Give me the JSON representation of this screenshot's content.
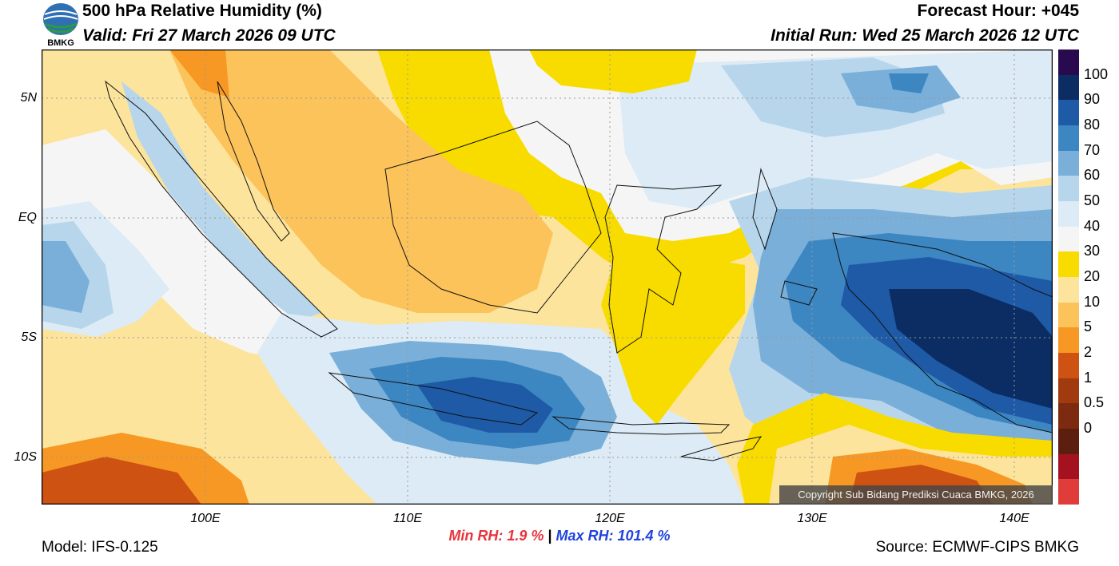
{
  "header": {
    "title": "500 hPa Relative Humidity (%)",
    "valid": "Valid: Fri 27 March 2026 09 UTC",
    "forecast_hour": "Forecast Hour: +045",
    "initial_run": "Initial Run: Wed 25 March 2026 12 UTC",
    "logo_text": "BMKG"
  },
  "map": {
    "lat_labels": [
      "5N",
      "EQ",
      "5S",
      "10S"
    ],
    "lon_labels": [
      "100E",
      "110E",
      "120E",
      "130E",
      "140E"
    ],
    "copyright": "Copyright Sub Bidang Prediksi Cuaca BMKG, 2026"
  },
  "colorbar": {
    "labels": [
      "100",
      "90",
      "80",
      "70",
      "60",
      "50",
      "40",
      "30",
      "20",
      "10",
      "5",
      "2",
      "1",
      "0.5",
      "0"
    ],
    "colors": [
      "#2a0a4f",
      "#0c2d63",
      "#1e5aa6",
      "#3c86c2",
      "#79afd8",
      "#b7d6ec",
      "#dcebf5",
      "#f5f5f5",
      "#f8dc00",
      "#fde49c",
      "#fbc35a",
      "#f79824",
      "#ce5212",
      "#a13a0f",
      "#7c2b10",
      "#5c1e0e",
      "#a3121e",
      "#e03c3a"
    ]
  },
  "stats": {
    "min_label": "Min RH:",
    "min_value": "1.9 %",
    "separator": "|",
    "max_label": "Max RH:",
    "max_value": "101.4 %"
  },
  "footer": {
    "model": "Model: IFS-0.125",
    "source": "Source: ECMWF-CIPS BMKG"
  }
}
